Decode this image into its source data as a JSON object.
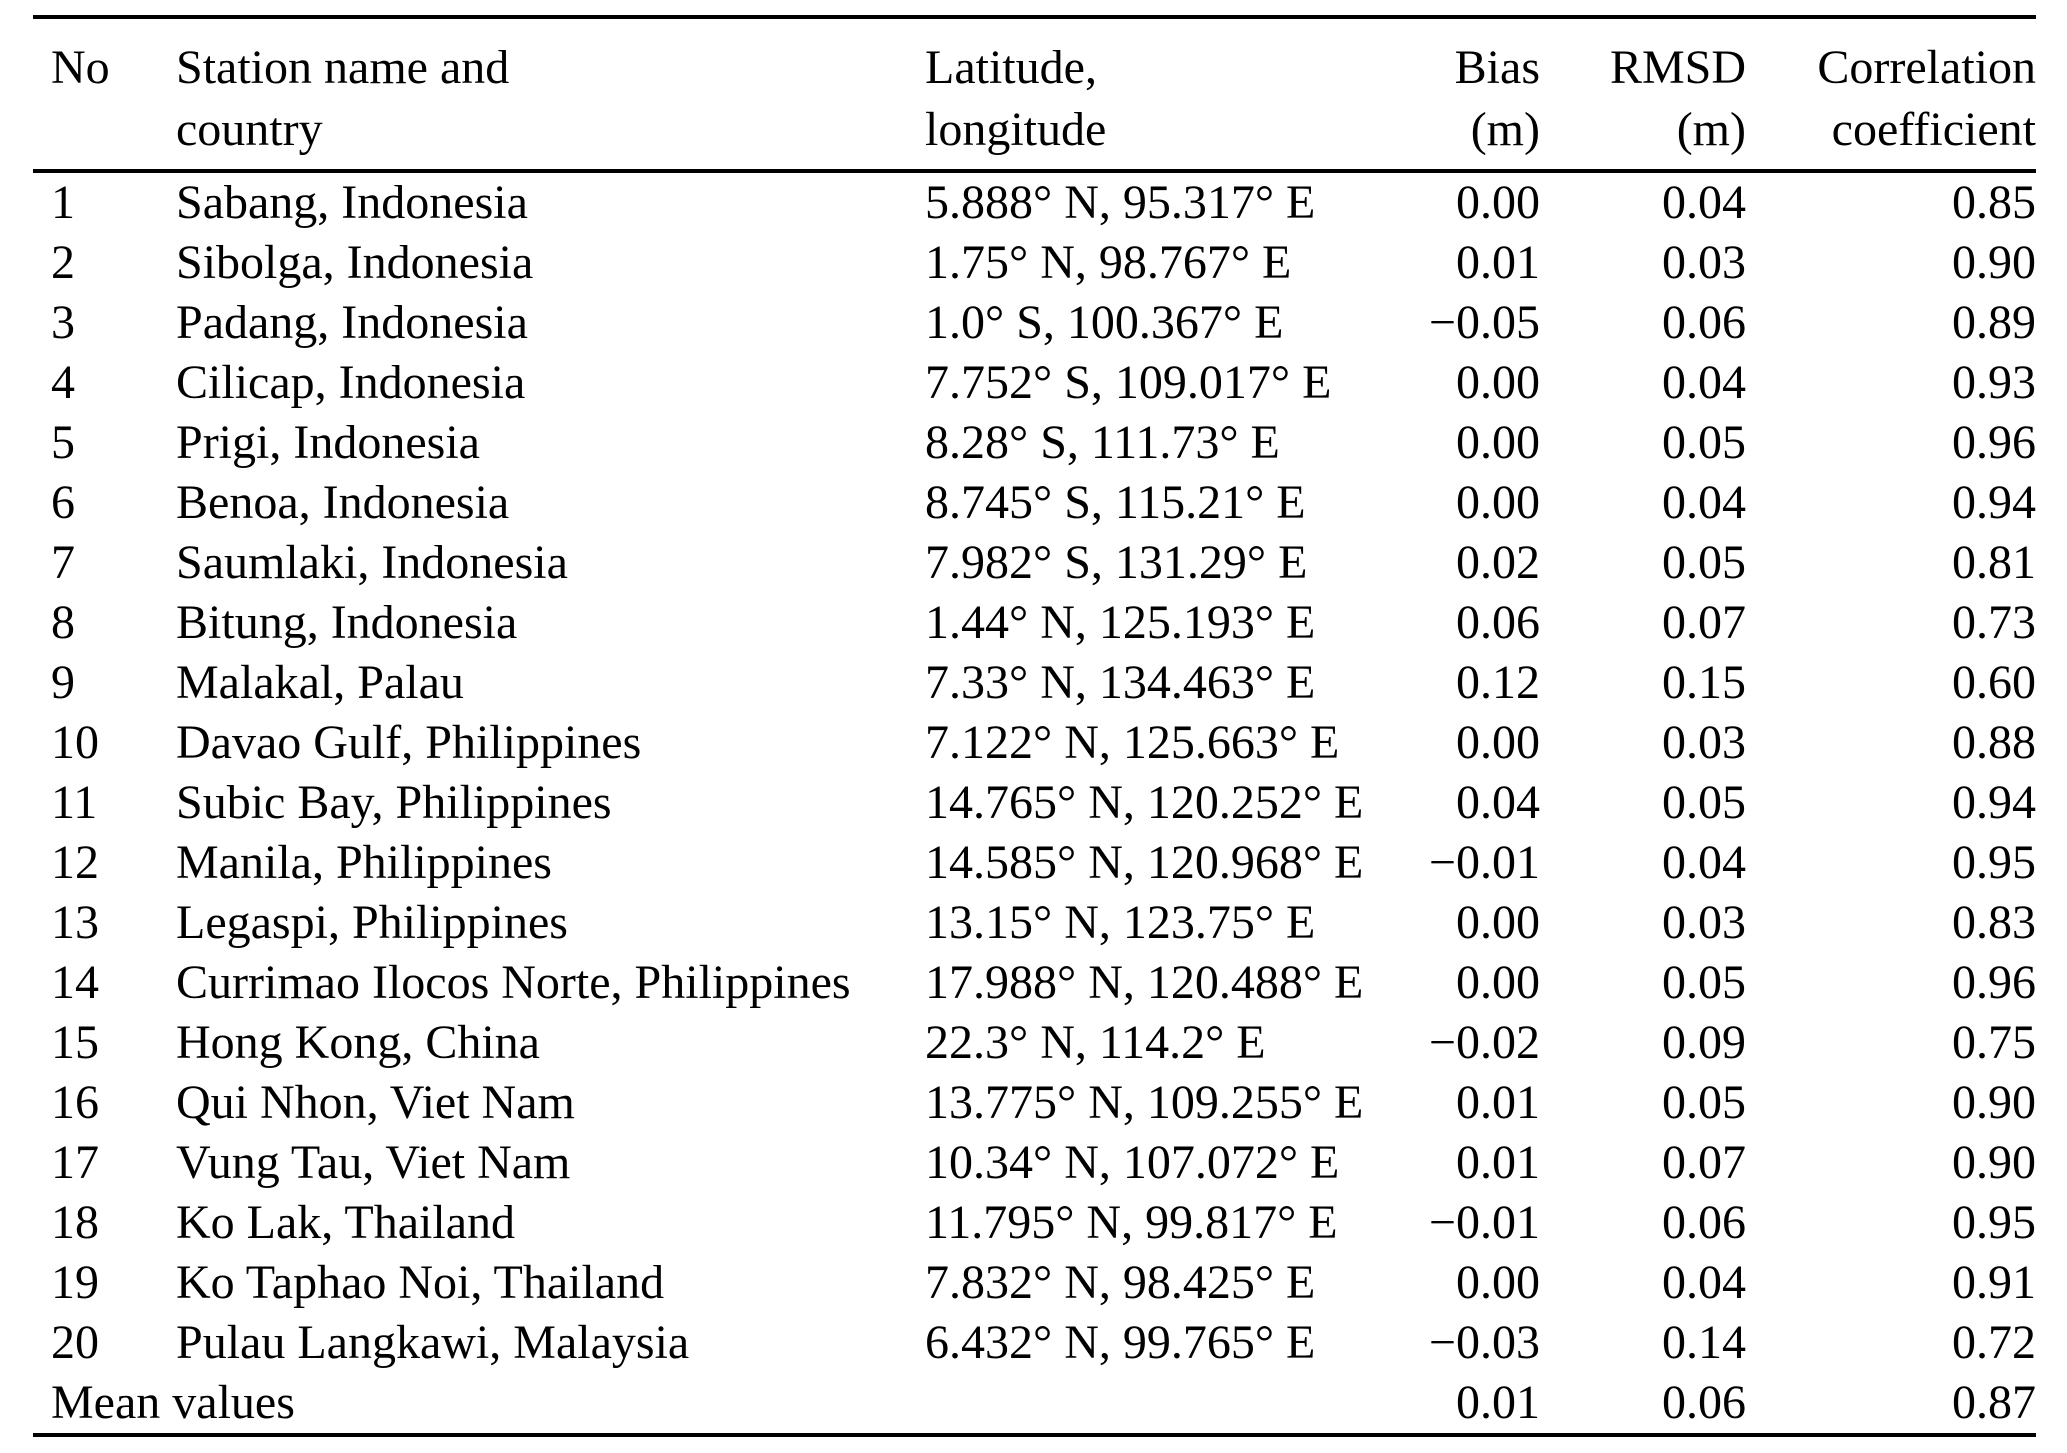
{
  "page": {
    "background_color": "#ffffff",
    "text_color": "#000000",
    "rule_color": "#000000"
  },
  "table": {
    "columns": [
      {
        "line1": "No",
        "line2": ""
      },
      {
        "line1": "Station name and",
        "line2": "country"
      },
      {
        "line1": "Latitude,",
        "line2": "longitude"
      },
      {
        "line1": "Bias",
        "line2": "(m)"
      },
      {
        "line1": "RMSD",
        "line2": "(m)"
      },
      {
        "line1": "Correlation",
        "line2": "coefficient"
      }
    ],
    "rows": [
      {
        "no": "1",
        "station": "Sabang, Indonesia",
        "coords": "5.888° N, 95.317° E",
        "bias": "0.00",
        "rmsd": "0.04",
        "corr": "0.85"
      },
      {
        "no": "2",
        "station": "Sibolga, Indonesia",
        "coords": "1.75° N, 98.767° E",
        "bias": "0.01",
        "rmsd": "0.03",
        "corr": "0.90"
      },
      {
        "no": "3",
        "station": "Padang, Indonesia",
        "coords": "1.0° S, 100.367° E",
        "bias": "−0.05",
        "rmsd": "0.06",
        "corr": "0.89"
      },
      {
        "no": "4",
        "station": "Cilicap, Indonesia",
        "coords": "7.752° S, 109.017° E",
        "bias": "0.00",
        "rmsd": "0.04",
        "corr": "0.93"
      },
      {
        "no": "5",
        "station": "Prigi, Indonesia",
        "coords": "8.28° S, 111.73° E",
        "bias": "0.00",
        "rmsd": "0.05",
        "corr": "0.96"
      },
      {
        "no": "6",
        "station": "Benoa, Indonesia",
        "coords": "8.745° S, 115.21° E",
        "bias": "0.00",
        "rmsd": "0.04",
        "corr": "0.94"
      },
      {
        "no": "7",
        "station": "Saumlaki, Indonesia",
        "coords": "7.982° S, 131.29° E",
        "bias": "0.02",
        "rmsd": "0.05",
        "corr": "0.81"
      },
      {
        "no": "8",
        "station": "Bitung, Indonesia",
        "coords": "1.44° N, 125.193° E",
        "bias": "0.06",
        "rmsd": "0.07",
        "corr": "0.73"
      },
      {
        "no": "9",
        "station": "Malakal, Palau",
        "coords": "7.33° N, 134.463° E",
        "bias": "0.12",
        "rmsd": "0.15",
        "corr": "0.60"
      },
      {
        "no": "10",
        "station": "Davao Gulf, Philippines",
        "coords": "7.122° N, 125.663° E",
        "bias": "0.00",
        "rmsd": "0.03",
        "corr": "0.88"
      },
      {
        "no": "11",
        "station": "Subic Bay, Philippines",
        "coords": "14.765° N, 120.252° E",
        "bias": "0.04",
        "rmsd": "0.05",
        "corr": "0.94"
      },
      {
        "no": "12",
        "station": "Manila, Philippines",
        "coords": "14.585° N, 120.968° E",
        "bias": "−0.01",
        "rmsd": "0.04",
        "corr": "0.95"
      },
      {
        "no": "13",
        "station": "Legaspi, Philippines",
        "coords": "13.15° N, 123.75° E",
        "bias": "0.00",
        "rmsd": "0.03",
        "corr": "0.83"
      },
      {
        "no": "14",
        "station": "Currimao Ilocos Norte, Philippines",
        "coords": "17.988° N, 120.488° E",
        "bias": "0.00",
        "rmsd": "0.05",
        "corr": "0.96"
      },
      {
        "no": "15",
        "station": "Hong Kong, China",
        "coords": "22.3° N, 114.2° E",
        "bias": "−0.02",
        "rmsd": "0.09",
        "corr": "0.75"
      },
      {
        "no": "16",
        "station": "Qui Nhon, Viet Nam",
        "coords": "13.775° N, 109.255° E",
        "bias": "0.01",
        "rmsd": "0.05",
        "corr": "0.90"
      },
      {
        "no": "17",
        "station": "Vung Tau, Viet Nam",
        "coords": "10.34° N, 107.072° E",
        "bias": "0.01",
        "rmsd": "0.07",
        "corr": "0.90"
      },
      {
        "no": "18",
        "station": "Ko Lak, Thailand",
        "coords": "11.795° N, 99.817° E",
        "bias": "−0.01",
        "rmsd": "0.06",
        "corr": "0.95"
      },
      {
        "no": "19",
        "station": "Ko Taphao Noi, Thailand",
        "coords": "7.832° N, 98.425° E",
        "bias": "0.00",
        "rmsd": "0.04",
        "corr": "0.91"
      },
      {
        "no": "20",
        "station": "Pulau Langkawi, Malaysia",
        "coords": "6.432° N, 99.765° E",
        "bias": "−0.03",
        "rmsd": "0.14",
        "corr": "0.72"
      }
    ],
    "footer": {
      "label": "Mean values",
      "bias": "0.01",
      "rmsd": "0.06",
      "corr": "0.87"
    }
  }
}
